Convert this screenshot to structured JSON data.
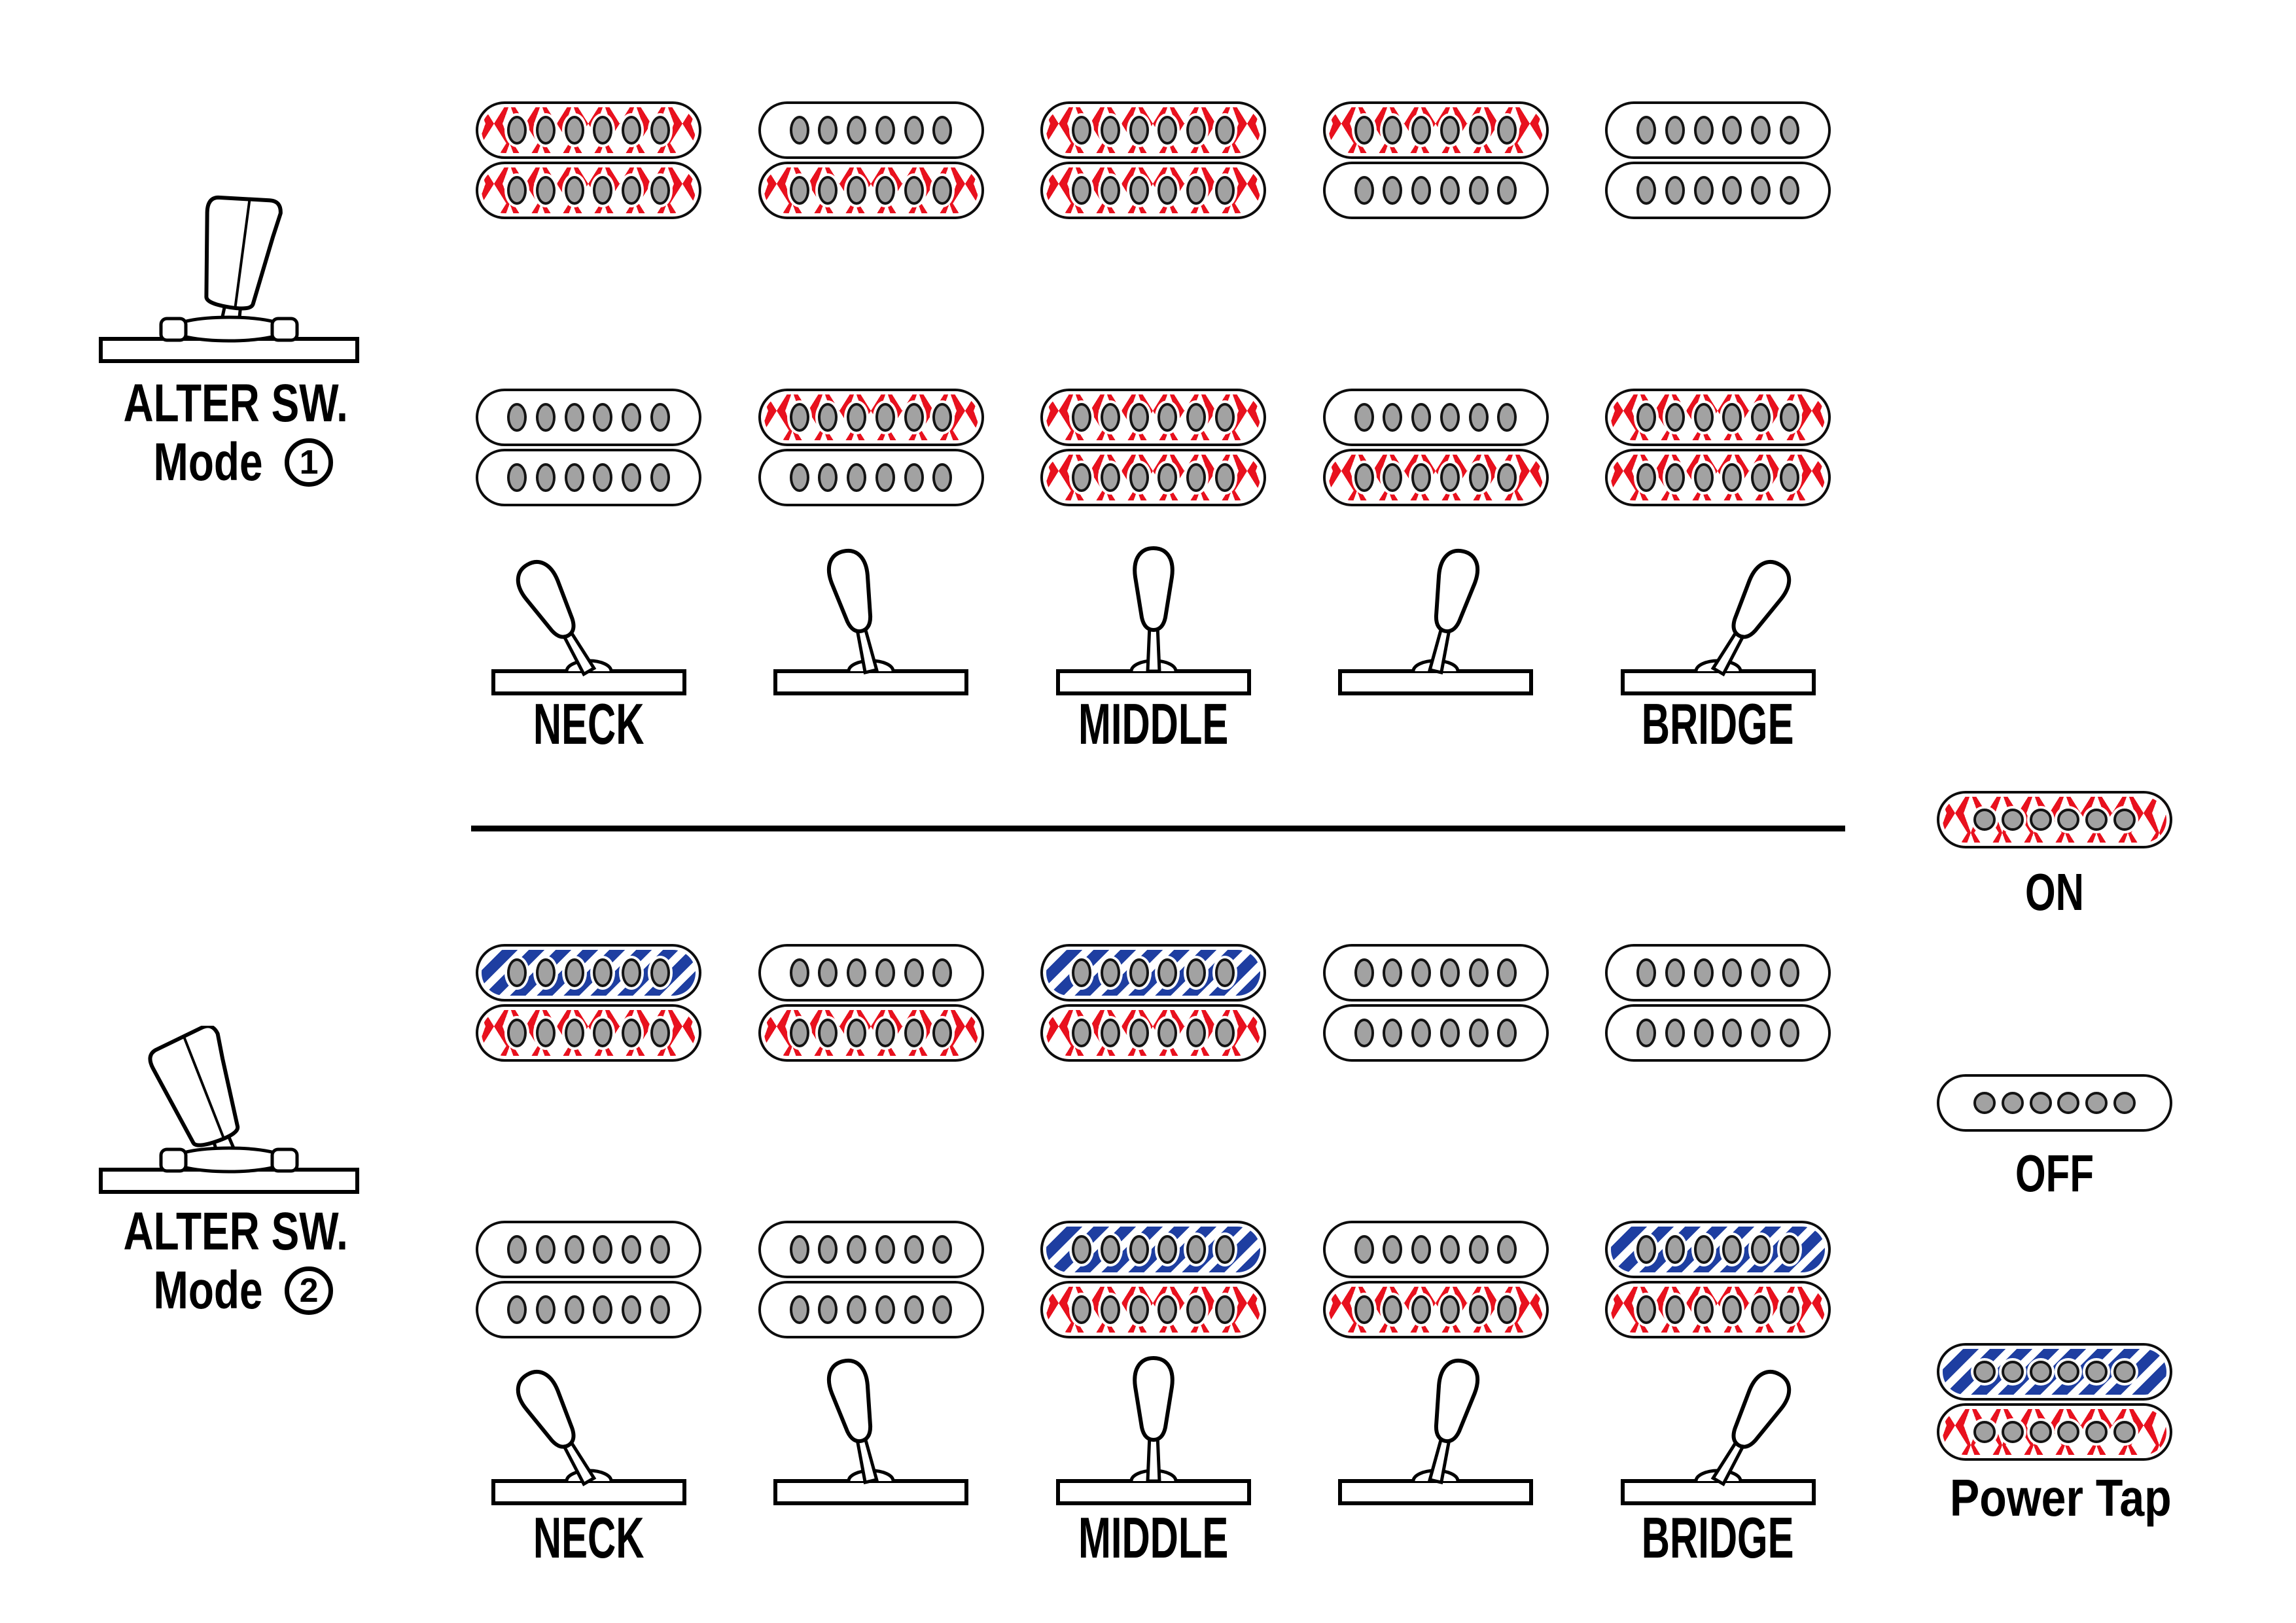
{
  "colors": {
    "on_red": "#e8111e",
    "tap_blue": "#1e3ea1",
    "pole_gray": "#a2a2a2",
    "line_black": "#000000"
  },
  "legend": {
    "on_label": "ON",
    "off_label": "OFF",
    "power_tap_label": "Power Tap",
    "on_coil": "on",
    "off_coil": "off",
    "power_tap_coils": [
      "tap",
      "on"
    ]
  },
  "switch_position_labels": {
    "neck": "NECK",
    "middle": "MIDDLE",
    "bridge": "BRIDGE"
  },
  "lever_angles_deg": [
    -30,
    -13,
    0,
    13,
    30
  ],
  "modes": [
    {
      "title": "ALTER SW.",
      "subtitle": "Mode",
      "number": "1",
      "icon_lean_deg": 9,
      "pickup_rows": [
        {
          "name": "row-1",
          "positions": [
            [
              "on",
              "on"
            ],
            [
              "off",
              "on"
            ],
            [
              "on",
              "on"
            ],
            [
              "on",
              "off"
            ],
            [
              "off",
              "off"
            ]
          ]
        },
        {
          "name": "row-2",
          "positions": [
            [
              "off",
              "off"
            ],
            [
              "on",
              "off"
            ],
            [
              "on",
              "on"
            ],
            [
              "off",
              "on"
            ],
            [
              "on",
              "on"
            ]
          ]
        }
      ]
    },
    {
      "title": "ALTER SW.",
      "subtitle": "Mode",
      "number": "2",
      "icon_lean_deg": -20,
      "pickup_rows": [
        {
          "name": "row-1",
          "positions": [
            [
              "tap",
              "on"
            ],
            [
              "off",
              "on"
            ],
            [
              "tap",
              "on"
            ],
            [
              "off",
              "off"
            ],
            [
              "off",
              "off"
            ]
          ]
        },
        {
          "name": "row-2",
          "positions": [
            [
              "off",
              "off"
            ],
            [
              "off",
              "off"
            ],
            [
              "tap",
              "on"
            ],
            [
              "off",
              "on"
            ],
            [
              "tap",
              "on"
            ]
          ]
        }
      ]
    }
  ]
}
